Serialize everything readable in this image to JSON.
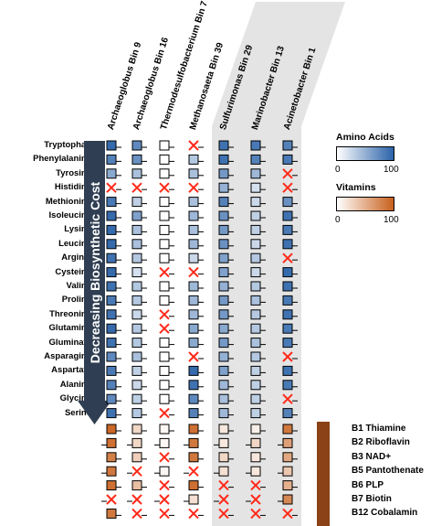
{
  "bins": [
    "Archaeoglobus Bin 9",
    "Archaeoglobus Bin 16",
    "Thermodesulfobacterium Bin 7",
    "Methanosaeta Bin 39",
    "Sulfurimonas Bin 29",
    "Marinobacter Bin 13",
    "Acinetobacter Bin 1"
  ],
  "amino_acids": [
    "Tryptophan",
    "Phenylalanine",
    "Tyrosine",
    "Histidine",
    "Methionine",
    "Isoleucine",
    "Lysine",
    "Leucine",
    "Arginie",
    "Cysteine",
    "Valine",
    "Proline",
    "Threonine",
    "Glutamine",
    "Gluminate",
    "Asparagine",
    "Aspartate",
    "Alanine",
    "Glycine",
    "Serine"
  ],
  "vitamins": [
    "B1 Thiamine",
    "B2 Riboflavin",
    "B3 NAD+",
    "B5 Pantothenate",
    "B6 PLP",
    "B7 Biotin",
    "B12 Cobalamin"
  ],
  "arrow_label": "Decreasing Biosynthetic Cost",
  "legend": {
    "amino_title": "Amino Acids",
    "vitamin_title": "Vitamins",
    "min": "0",
    "max": "100"
  },
  "colors": {
    "amino_low": "#ffffff",
    "amino_high": "#2a62a8",
    "vitamin_low": "#ffffff",
    "vitamin_high": "#c8601c",
    "missing_x": "#ff2a1a",
    "arrow": "#2f3e52",
    "shade": "#e4e4e4",
    "vitamin_bar": "#8a4216"
  },
  "amino_matrix": [
    [
      95,
      75,
      0,
      null,
      90,
      85,
      80
    ],
    [
      80,
      70,
      0,
      35,
      90,
      80,
      85
    ],
    [
      55,
      40,
      0,
      40,
      65,
      45,
      null
    ],
    [
      null,
      null,
      null,
      null,
      50,
      20,
      null
    ],
    [
      85,
      30,
      0,
      40,
      80,
      25,
      70
    ],
    [
      95,
      60,
      0,
      45,
      70,
      30,
      90
    ],
    [
      95,
      40,
      0,
      40,
      65,
      30,
      85
    ],
    [
      95,
      40,
      0,
      45,
      70,
      25,
      90
    ],
    [
      90,
      35,
      0,
      25,
      60,
      35,
      null
    ],
    [
      95,
      20,
      null,
      null,
      60,
      25,
      95
    ],
    [
      90,
      35,
      0,
      45,
      50,
      35,
      90
    ],
    [
      85,
      35,
      0,
      45,
      65,
      40,
      85
    ],
    [
      90,
      25,
      null,
      45,
      65,
      35,
      90
    ],
    [
      95,
      35,
      null,
      55,
      55,
      35,
      85
    ],
    [
      90,
      35,
      0,
      55,
      65,
      40,
      85
    ],
    [
      75,
      40,
      0,
      null,
      50,
      35,
      null
    ],
    [
      85,
      30,
      0,
      95,
      60,
      30,
      90
    ],
    [
      80,
      25,
      0,
      90,
      45,
      30,
      85
    ],
    [
      75,
      30,
      0,
      75,
      40,
      30,
      null
    ],
    [
      90,
      35,
      null,
      80,
      45,
      30,
      80
    ]
  ],
  "vitamin_matrix": [
    [
      95,
      25,
      5,
      90,
      15,
      10,
      85
    ],
    [
      90,
      25,
      5,
      85,
      15,
      25,
      60
    ],
    [
      80,
      30,
      null,
      85,
      25,
      15,
      55
    ],
    [
      85,
      null,
      5,
      null,
      20,
      15,
      35
    ],
    [
      90,
      40,
      null,
      90,
      null,
      null,
      50
    ],
    [
      null,
      null,
      null,
      20,
      null,
      null,
      75
    ],
    [
      85,
      null,
      null,
      null,
      null,
      null,
      null
    ]
  ]
}
